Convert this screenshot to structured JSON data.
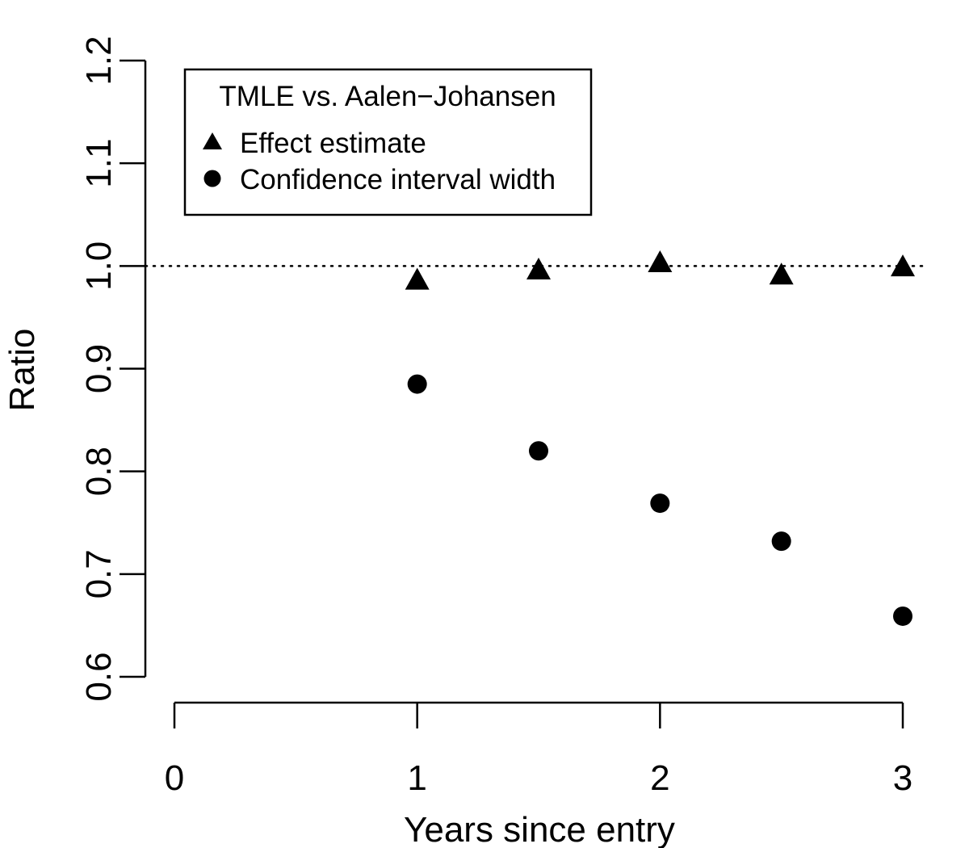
{
  "chart_data": {
    "type": "scatter",
    "title": "",
    "xlabel": "Years since entry",
    "ylabel": "Ratio",
    "xlim": [
      0,
      3
    ],
    "ylim": [
      0.6,
      1.2
    ],
    "x_ticks": [
      "0",
      "1",
      "2",
      "3"
    ],
    "y_ticks": [
      "0.6",
      "0.7",
      "0.8",
      "0.9",
      "1.0",
      "1.1",
      "1.2"
    ],
    "reference_line": {
      "y": 1.0,
      "style": "dotted"
    },
    "grid": false,
    "legend": {
      "title": "TMLE vs. Aalen−Johansen",
      "placement": "top-left"
    },
    "series": [
      {
        "name": "Effect estimate",
        "marker": "triangle",
        "x": [
          1,
          1.5,
          2,
          2.5,
          3
        ],
        "y": [
          0.985,
          0.995,
          1.002,
          0.99,
          0.998
        ]
      },
      {
        "name": "Confidence interval width",
        "marker": "circle",
        "x": [
          1,
          1.5,
          2,
          2.5,
          3
        ],
        "y": [
          0.885,
          0.82,
          0.769,
          0.732,
          0.659
        ]
      }
    ]
  }
}
